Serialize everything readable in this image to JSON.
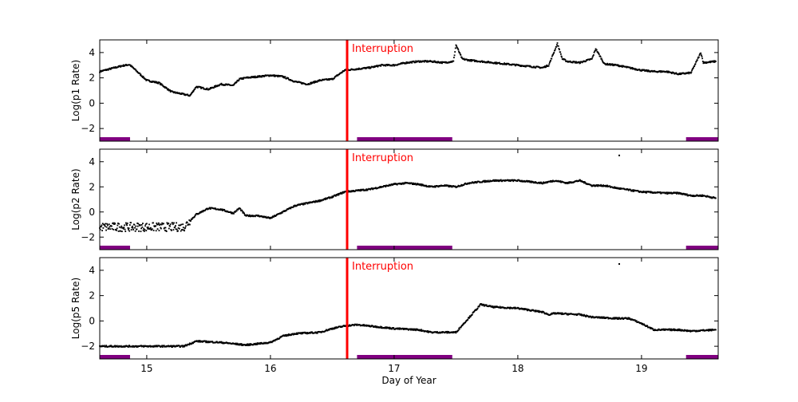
{
  "chart_data": [
    {
      "type": "scatter",
      "ylabel": "Log(p1 Rate)",
      "xlim": [
        14.62,
        19.62
      ],
      "ylim": [
        -3,
        5
      ],
      "yticks": [
        -2,
        0,
        2,
        4
      ],
      "xticks": [
        15,
        16,
        17,
        18,
        19
      ],
      "annotation": {
        "text": "Interruption",
        "x": 16.62,
        "color": "#ff0000"
      },
      "shaded_intervals": [
        [
          14.62,
          14.865
        ],
        [
          16.7,
          17.47
        ],
        [
          19.36,
          19.62
        ]
      ],
      "interval_color": "#800080",
      "series": [
        {
          "color": "#000000",
          "points": [
            [
              14.62,
              2.5
            ],
            [
              14.7,
              2.7
            ],
            [
              14.8,
              2.95
            ],
            [
              14.86,
              3.05
            ],
            [
              14.9,
              2.7
            ],
            [
              15.0,
              1.8
            ],
            [
              15.1,
              1.6
            ],
            [
              15.2,
              0.9
            ],
            [
              15.3,
              0.7
            ],
            [
              15.35,
              0.6
            ],
            [
              15.4,
              1.3
            ],
            [
              15.5,
              1.1
            ],
            [
              15.6,
              1.5
            ],
            [
              15.7,
              1.4
            ],
            [
              15.75,
              1.9
            ],
            [
              15.8,
              2.0
            ],
            [
              15.9,
              2.1
            ],
            [
              16.0,
              2.2
            ],
            [
              16.1,
              2.1
            ],
            [
              16.2,
              1.7
            ],
            [
              16.3,
              1.5
            ],
            [
              16.4,
              1.8
            ],
            [
              16.5,
              1.9
            ],
            [
              16.6,
              2.6
            ],
            [
              16.7,
              2.7
            ],
            [
              16.8,
              2.8
            ],
            [
              16.9,
              3.0
            ],
            [
              17.0,
              3.0
            ],
            [
              17.1,
              3.2
            ],
            [
              17.2,
              3.3
            ],
            [
              17.3,
              3.3
            ],
            [
              17.4,
              3.2
            ],
            [
              17.48,
              3.3
            ],
            [
              17.5,
              4.6
            ],
            [
              17.55,
              3.5
            ],
            [
              17.6,
              3.4
            ],
            [
              17.7,
              3.3
            ],
            [
              17.8,
              3.2
            ],
            [
              17.9,
              3.1
            ],
            [
              18.0,
              3.0
            ],
            [
              18.1,
              2.9
            ],
            [
              18.2,
              2.8
            ],
            [
              18.25,
              3.0
            ],
            [
              18.32,
              4.7
            ],
            [
              18.36,
              3.5
            ],
            [
              18.4,
              3.3
            ],
            [
              18.5,
              3.2
            ],
            [
              18.6,
              3.5
            ],
            [
              18.63,
              4.3
            ],
            [
              18.7,
              3.1
            ],
            [
              18.8,
              3.0
            ],
            [
              18.9,
              2.8
            ],
            [
              19.0,
              2.6
            ],
            [
              19.1,
              2.5
            ],
            [
              19.2,
              2.5
            ],
            [
              19.3,
              2.3
            ],
            [
              19.4,
              2.4
            ],
            [
              19.48,
              4.0
            ],
            [
              19.5,
              3.2
            ],
            [
              19.6,
              3.3
            ]
          ]
        }
      ]
    },
    {
      "type": "scatter",
      "ylabel": "Log(p2 Rate)",
      "xlim": [
        14.62,
        19.62
      ],
      "ylim": [
        -3,
        5
      ],
      "yticks": [
        -2,
        0,
        2,
        4
      ],
      "xticks": [
        15,
        16,
        17,
        18,
        19
      ],
      "annotation": {
        "text": "Interruption",
        "x": 16.62,
        "color": "#ff0000"
      },
      "shaded_intervals": [
        [
          14.62,
          14.865
        ],
        [
          16.7,
          17.47
        ],
        [
          19.36,
          19.62
        ]
      ],
      "interval_color": "#800080",
      "series": [
        {
          "color": "#000000",
          "points": [
            [
              14.62,
              -1.2
            ],
            [
              15.0,
              -1.2
            ],
            [
              15.3,
              -1.2
            ],
            [
              15.4,
              -0.2
            ],
            [
              15.5,
              0.3
            ],
            [
              15.6,
              0.2
            ],
            [
              15.7,
              -0.1
            ],
            [
              15.75,
              0.3
            ],
            [
              15.8,
              -0.3
            ],
            [
              15.9,
              -0.3
            ],
            [
              16.0,
              -0.5
            ],
            [
              16.1,
              0.0
            ],
            [
              16.2,
              0.5
            ],
            [
              16.3,
              0.7
            ],
            [
              16.4,
              0.9
            ],
            [
              16.5,
              1.2
            ],
            [
              16.6,
              1.6
            ],
            [
              16.7,
              1.7
            ],
            [
              16.8,
              1.8
            ],
            [
              16.9,
              2.0
            ],
            [
              17.0,
              2.2
            ],
            [
              17.1,
              2.3
            ],
            [
              17.2,
              2.2
            ],
            [
              17.3,
              2.0
            ],
            [
              17.4,
              2.1
            ],
            [
              17.5,
              2.0
            ],
            [
              17.6,
              2.3
            ],
            [
              17.8,
              2.5
            ],
            [
              18.0,
              2.5
            ],
            [
              18.2,
              2.3
            ],
            [
              18.3,
              2.5
            ],
            [
              18.4,
              2.3
            ],
            [
              18.5,
              2.5
            ],
            [
              18.6,
              2.1
            ],
            [
              18.7,
              2.1
            ],
            [
              18.8,
              1.9
            ],
            [
              19.0,
              1.6
            ],
            [
              19.2,
              1.5
            ],
            [
              19.3,
              1.5
            ],
            [
              19.4,
              1.3
            ],
            [
              19.5,
              1.3
            ],
            [
              19.6,
              1.1
            ]
          ],
          "outliers": [
            [
              18.82,
              4.5
            ]
          ]
        }
      ]
    },
    {
      "type": "scatter",
      "ylabel": "Log(p5 Rate)",
      "xlabel": "Day of Year",
      "xlim": [
        14.62,
        19.62
      ],
      "ylim": [
        -3,
        5
      ],
      "yticks": [
        -2,
        0,
        2,
        4
      ],
      "xticks": [
        15,
        16,
        17,
        18,
        19
      ],
      "annotation": {
        "text": "Interruption",
        "x": 16.62,
        "color": "#ff0000"
      },
      "shaded_intervals": [
        [
          14.62,
          14.865
        ],
        [
          16.7,
          17.47
        ],
        [
          19.36,
          19.62
        ]
      ],
      "interval_color": "#800080",
      "series": [
        {
          "color": "#000000",
          "points": [
            [
              14.62,
              -2.0
            ],
            [
              15.3,
              -2.0
            ],
            [
              15.4,
              -1.6
            ],
            [
              15.6,
              -1.7
            ],
            [
              15.8,
              -1.9
            ],
            [
              16.0,
              -1.7
            ],
            [
              16.1,
              -1.2
            ],
            [
              16.2,
              -1.0
            ],
            [
              16.4,
              -0.9
            ],
            [
              16.5,
              -0.6
            ],
            [
              16.6,
              -0.4
            ],
            [
              16.7,
              -0.3
            ],
            [
              16.8,
              -0.4
            ],
            [
              16.9,
              -0.5
            ],
            [
              17.0,
              -0.6
            ],
            [
              17.2,
              -0.7
            ],
            [
              17.3,
              -0.9
            ],
            [
              17.5,
              -0.9
            ],
            [
              17.6,
              0.2
            ],
            [
              17.7,
              1.3
            ],
            [
              17.8,
              1.1
            ],
            [
              18.0,
              1.0
            ],
            [
              18.2,
              0.7
            ],
            [
              18.25,
              0.5
            ],
            [
              18.3,
              0.6
            ],
            [
              18.5,
              0.5
            ],
            [
              18.6,
              0.3
            ],
            [
              18.8,
              0.2
            ],
            [
              18.9,
              0.2
            ],
            [
              19.0,
              -0.2
            ],
            [
              19.1,
              -0.7
            ],
            [
              19.3,
              -0.7
            ],
            [
              19.4,
              -0.8
            ],
            [
              19.6,
              -0.7
            ]
          ],
          "outliers": [
            [
              18.82,
              4.5
            ]
          ]
        }
      ]
    }
  ]
}
